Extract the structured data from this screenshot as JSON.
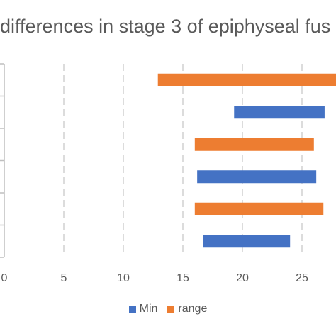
{
  "chart_data": {
    "type": "bar",
    "orientation": "horizontal",
    "title": "differences in stage 3 of epiphyseal fus",
    "xlim": [
      0,
      30
    ],
    "x_ticks": [
      0,
      5,
      10,
      15,
      20,
      25
    ],
    "grid": "vertical dashed",
    "legend_position": "bottom",
    "series": [
      {
        "name": "Min",
        "color": "#4472C4"
      },
      {
        "name": "range",
        "color": "#ED7D31"
      }
    ],
    "bars": [
      {
        "series": "range",
        "start": 12.9,
        "end": 28.0
      },
      {
        "series": "Min",
        "start": 19.3,
        "end": 26.9
      },
      {
        "series": "range",
        "start": 16.0,
        "end": 26.0
      },
      {
        "series": "Min",
        "start": 16.2,
        "end": 26.2
      },
      {
        "series": "range",
        "start": 16.0,
        "end": 26.8
      },
      {
        "series": "Min",
        "start": 16.7,
        "end": 24.0
      }
    ]
  }
}
